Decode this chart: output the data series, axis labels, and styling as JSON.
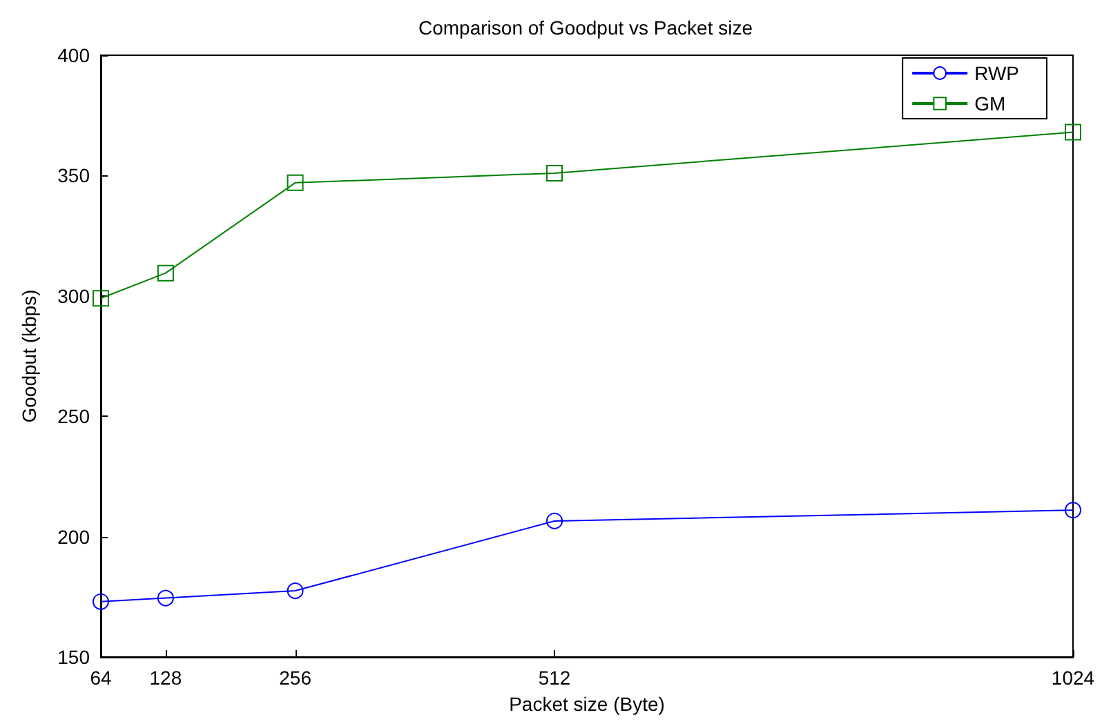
{
  "chart_data": {
    "type": "line",
    "title": "Comparison of Goodput vs Packet size",
    "xlabel": "Packet size (Byte)",
    "ylabel": "Goodput (kbps)",
    "x": [
      64,
      128,
      256,
      512,
      1024
    ],
    "series": [
      {
        "name": "RWP",
        "color": "#0000ff",
        "marker": "circle",
        "values": [
          173,
          174.5,
          177.5,
          206.5,
          211
        ]
      },
      {
        "name": "GM",
        "color": "#008000",
        "marker": "square",
        "values": [
          299,
          309.5,
          347,
          351,
          368
        ]
      }
    ],
    "xlim": [
      64,
      1024
    ],
    "xticks": [
      64,
      128,
      256,
      512,
      1024
    ],
    "ylim": [
      150,
      400
    ],
    "yticks": [
      150,
      200,
      250,
      300,
      350,
      400
    ],
    "grid": false,
    "legend": "top right",
    "line_style": "solid"
  }
}
